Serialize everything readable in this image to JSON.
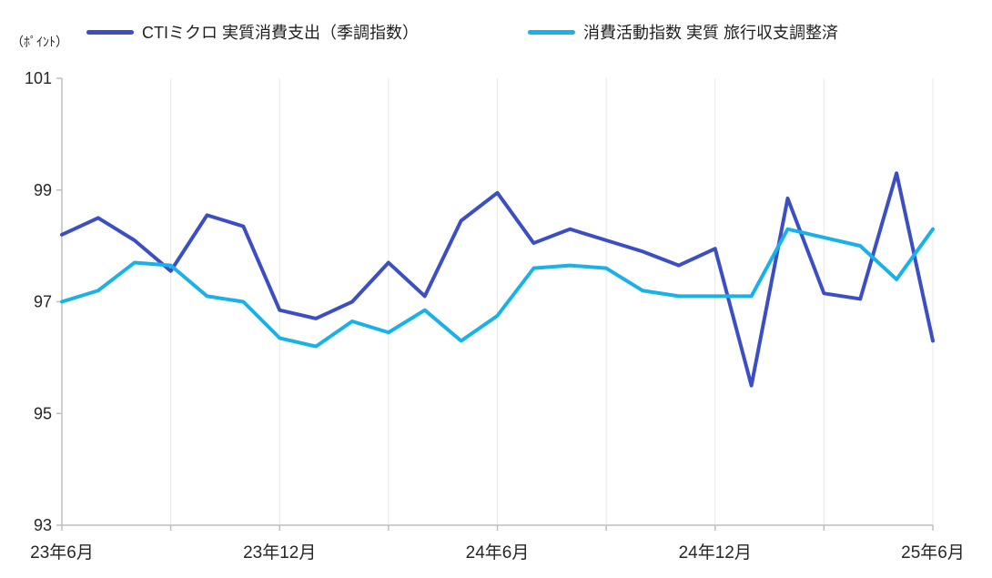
{
  "unit_label": "（ﾎﾟｲﾝﾄ）",
  "legend": {
    "items": [
      {
        "label": "CTIミクロ 実質消費支出（季調指数）",
        "color": "#3C4EC4"
      },
      {
        "label": "消費活動指数 実質 旅行収支調整済",
        "color": "#19B2E8"
      }
    ]
  },
  "axes": {
    "y_tick_labels": [
      "101",
      "99",
      "97",
      "95",
      "93"
    ],
    "x_tick_labels": [
      "23年6月",
      "23年12月",
      "24年6月",
      "24年12月",
      "25年6月"
    ]
  },
  "chart_data": {
    "type": "line",
    "title": "",
    "xlabel": "",
    "ylabel": "（ﾎﾟｲﾝﾄ）",
    "ylim": [
      93,
      101
    ],
    "y_ticks": [
      101,
      99,
      97,
      95,
      93
    ],
    "grid": "vertical-only",
    "legend_position": "top",
    "x_unit": "month",
    "x_points": 25,
    "x_tick_labels": [
      {
        "index": 0,
        "label": "23年6月"
      },
      {
        "index": 6,
        "label": "23年12月"
      },
      {
        "index": 12,
        "label": "24年6月"
      },
      {
        "index": 18,
        "label": "24年12月"
      },
      {
        "index": 24,
        "label": "25年6月"
      }
    ],
    "gridline_every": 3,
    "series": [
      {
        "name": "CTIミクロ 実質消費支出（季調指数）",
        "color": "#3C4EC4",
        "values": [
          98.2,
          98.5,
          98.1,
          97.55,
          98.55,
          98.35,
          96.85,
          96.7,
          97.0,
          97.7,
          97.1,
          98.45,
          98.95,
          98.05,
          98.3,
          98.1,
          97.9,
          97.65,
          97.95,
          95.5,
          98.85,
          97.15,
          97.05,
          99.3,
          96.3
        ]
      },
      {
        "name": "消費活動指数 実質 旅行収支調整済",
        "color": "#19B2E8",
        "values": [
          97.0,
          97.2,
          97.7,
          97.65,
          97.1,
          97.0,
          96.35,
          96.2,
          96.65,
          96.45,
          96.85,
          96.3,
          96.75,
          97.6,
          97.65,
          97.6,
          97.2,
          97.1,
          97.1,
          97.1,
          98.3,
          98.15,
          98.0,
          97.4,
          98.3
        ]
      }
    ],
    "colors": {
      "axis": "#BFBFBF",
      "gridline": "#E8E8E8",
      "text": "#262626"
    }
  }
}
